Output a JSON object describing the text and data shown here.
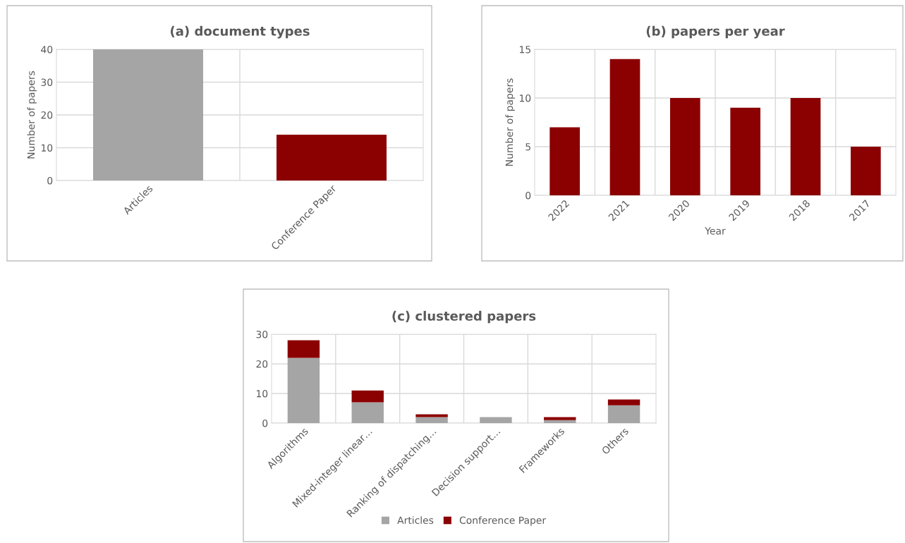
{
  "chart_data": [
    {
      "type": "bar",
      "title": "(a) document types",
      "ylabel": "Number of papers",
      "categories": [
        "Articles",
        "Conference Paper"
      ],
      "values": [
        40,
        14
      ],
      "colors": [
        "#a5a5a5",
        "#8b0000"
      ],
      "ylim": [
        0,
        40
      ],
      "yticks": [
        0,
        10,
        20,
        30,
        40
      ],
      "grid": true,
      "legend": false
    },
    {
      "type": "bar",
      "title": "(b) papers per year",
      "xlabel": "Year",
      "ylabel": "Number of papers",
      "categories": [
        "2022",
        "2021",
        "2020",
        "2019",
        "2018",
        "2017"
      ],
      "values": [
        7,
        14,
        10,
        9,
        10,
        5
      ],
      "color": "#8b0000",
      "ylim": [
        0,
        15
      ],
      "yticks": [
        0,
        5,
        10,
        15
      ],
      "grid": true,
      "legend": false
    },
    {
      "type": "bar",
      "title": "(c) clustered papers",
      "stacked": true,
      "categories": [
        "Algorithms",
        "Mixed-integer linear…",
        "Ranking of dispatching…",
        "Decision support…",
        "Frameworks",
        "Others"
      ],
      "series": [
        {
          "name": "Articles",
          "color": "#a5a5a5",
          "values": [
            22,
            7,
            2,
            2,
            1,
            6
          ]
        },
        {
          "name": "Conference Paper",
          "color": "#8b0000",
          "values": [
            6,
            4,
            1,
            0,
            1,
            2
          ]
        }
      ],
      "ylim": [
        0,
        30
      ],
      "yticks": [
        0,
        10,
        20,
        30
      ],
      "grid": true,
      "legend": "bottom"
    }
  ]
}
